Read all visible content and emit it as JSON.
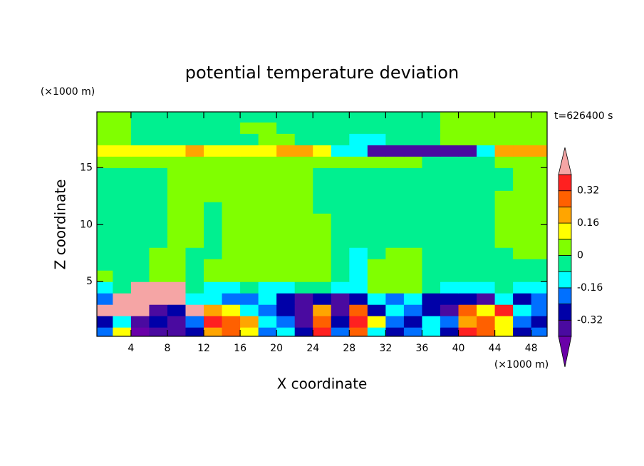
{
  "chart_data": {
    "type": "contour",
    "title": "potential temperature deviation",
    "annotation": "t=626400 s",
    "x_label": "X coordinate",
    "y_label": "Z coordinate",
    "x_unit": "(×1000 m)",
    "y_unit": "(×1000 m)",
    "xlim": [
      0.25,
      49.75
    ],
    "ylim": [
      0.2,
      19.9
    ],
    "xticks": [
      4,
      8,
      12,
      16,
      20,
      24,
      28,
      32,
      36,
      40,
      44,
      48
    ],
    "yticks": [
      5,
      10,
      15
    ],
    "x": [
      1,
      3,
      5,
      7,
      9,
      11,
      13,
      15,
      17,
      19,
      21,
      23,
      25,
      27,
      29,
      31,
      33,
      35,
      37,
      39,
      41,
      43,
      45,
      47,
      49
    ],
    "z": [
      0.5,
      1.5,
      2.5,
      3.5,
      4.5,
      5.5,
      6.5,
      7.5,
      8.5,
      9.5,
      10.5,
      11.5,
      12.5,
      13.5,
      14.5,
      15.5,
      16.5,
      17.5,
      18.5,
      19.5
    ],
    "levels": [
      -0.4,
      -0.32,
      -0.24,
      -0.16,
      -0.08,
      0,
      0.08,
      0.16,
      0.24,
      0.32,
      0.4
    ],
    "colors": [
      "#6a00a8",
      "#4a0aa0",
      "#0000a8",
      "#0070ff",
      "#00ffff",
      "#00f090",
      "#80ff00",
      "#ffff00",
      "#ffa500",
      "#ff6000",
      "#ff2020",
      "#f5a5a5"
    ],
    "colorbar_ticks": [
      0.32,
      0.16,
      0,
      -0.16,
      -0.32
    ],
    "values": [
      [
        -0.2,
        0.12,
        -0.44,
        -0.36,
        -0.36,
        -0.28,
        0.2,
        0.28,
        0.12,
        -0.2,
        -0.12,
        -0.28,
        0.36,
        -0.2,
        0.28,
        -0.12,
        -0.28,
        -0.2,
        -0.12,
        -0.28,
        0.36,
        0.28,
        0.12,
        -0.28,
        -0.2
      ],
      [
        -0.28,
        -0.12,
        -0.36,
        -0.28,
        -0.36,
        -0.2,
        0.36,
        0.28,
        0.2,
        -0.12,
        -0.2,
        -0.36,
        0.28,
        -0.28,
        0.36,
        0.12,
        -0.2,
        -0.28,
        -0.12,
        -0.2,
        0.2,
        0.28,
        0.12,
        -0.2,
        -0.28
      ],
      [
        0.44,
        0.44,
        0.44,
        -0.36,
        -0.28,
        0.44,
        0.2,
        0.12,
        -0.12,
        -0.2,
        -0.28,
        -0.36,
        0.2,
        -0.36,
        0.28,
        -0.28,
        -0.12,
        -0.2,
        -0.28,
        -0.36,
        0.28,
        0.12,
        0.36,
        -0.12,
        -0.2
      ],
      [
        -0.2,
        0.44,
        0.44,
        0.44,
        0.44,
        -0.12,
        -0.12,
        -0.2,
        -0.2,
        -0.12,
        -0.28,
        -0.36,
        -0.28,
        -0.36,
        -0.28,
        -0.12,
        -0.2,
        -0.12,
        -0.28,
        -0.28,
        -0.28,
        -0.36,
        -0.12,
        -0.28,
        -0.2
      ],
      [
        -0.12,
        -0.04,
        0.44,
        0.44,
        0.44,
        -0.04,
        -0.12,
        -0.12,
        -0.04,
        -0.12,
        -0.12,
        -0.04,
        -0.04,
        -0.12,
        -0.12,
        0.04,
        0.04,
        0.04,
        -0.04,
        -0.12,
        -0.12,
        -0.12,
        -0.04,
        -0.12,
        -0.12
      ],
      [
        0.04,
        -0.04,
        -0.04,
        0.04,
        0.04,
        -0.04,
        0.04,
        0.04,
        0.04,
        0.04,
        0.04,
        0.04,
        0.04,
        -0.04,
        -0.12,
        0.04,
        0.04,
        0.04,
        -0.04,
        -0.04,
        -0.04,
        -0.04,
        -0.04,
        -0.04,
        -0.04
      ],
      [
        -0.04,
        -0.04,
        -0.04,
        0.04,
        0.04,
        -0.04,
        0.04,
        0.04,
        0.04,
        0.04,
        0.04,
        0.04,
        0.04,
        -0.04,
        -0.12,
        0.04,
        0.04,
        0.04,
        -0.04,
        -0.04,
        -0.04,
        -0.04,
        -0.04,
        -0.04,
        -0.04
      ],
      [
        -0.04,
        -0.04,
        -0.04,
        0.04,
        0.04,
        -0.04,
        -0.04,
        0.04,
        0.04,
        0.04,
        0.04,
        0.04,
        0.04,
        -0.04,
        -0.12,
        -0.04,
        0.04,
        0.04,
        -0.04,
        -0.04,
        -0.04,
        -0.04,
        -0.04,
        0.04,
        0.04
      ],
      [
        -0.04,
        -0.04,
        -0.04,
        -0.04,
        0.04,
        0.04,
        -0.04,
        0.04,
        0.04,
        0.04,
        0.04,
        0.04,
        0.04,
        -0.04,
        -0.04,
        -0.04,
        -0.04,
        -0.04,
        -0.04,
        -0.04,
        -0.04,
        -0.04,
        0.04,
        0.04,
        0.04
      ],
      [
        -0.04,
        -0.04,
        -0.04,
        -0.04,
        0.04,
        0.04,
        -0.04,
        0.04,
        0.04,
        0.04,
        0.04,
        0.04,
        0.04,
        -0.04,
        -0.04,
        -0.04,
        -0.04,
        -0.04,
        -0.04,
        -0.04,
        -0.04,
        -0.04,
        0.04,
        0.04,
        0.04
      ],
      [
        -0.04,
        -0.04,
        -0.04,
        -0.04,
        0.04,
        0.04,
        -0.04,
        0.04,
        0.04,
        0.04,
        0.04,
        0.04,
        0.04,
        -0.04,
        -0.04,
        -0.04,
        -0.04,
        -0.04,
        -0.04,
        -0.04,
        -0.04,
        -0.04,
        0.04,
        0.04,
        0.04
      ],
      [
        -0.04,
        -0.04,
        -0.04,
        -0.04,
        0.04,
        0.04,
        -0.04,
        0.04,
        0.04,
        0.04,
        0.04,
        0.04,
        -0.04,
        -0.04,
        -0.04,
        -0.04,
        -0.04,
        -0.04,
        -0.04,
        -0.04,
        -0.04,
        -0.04,
        0.04,
        0.04,
        0.04
      ],
      [
        -0.04,
        -0.04,
        -0.04,
        -0.04,
        0.04,
        0.04,
        0.04,
        0.04,
        0.04,
        0.04,
        0.04,
        0.04,
        -0.04,
        -0.04,
        -0.04,
        -0.04,
        -0.04,
        -0.04,
        -0.04,
        -0.04,
        -0.04,
        -0.04,
        0.04,
        0.04,
        0.04
      ],
      [
        -0.04,
        -0.04,
        -0.04,
        -0.04,
        0.04,
        0.04,
        0.04,
        0.04,
        0.04,
        0.04,
        0.04,
        0.04,
        -0.04,
        -0.04,
        -0.04,
        -0.04,
        -0.04,
        -0.04,
        -0.04,
        -0.04,
        -0.04,
        -0.04,
        -0.04,
        0.04,
        0.04
      ],
      [
        -0.04,
        -0.04,
        -0.04,
        -0.04,
        0.04,
        0.04,
        0.04,
        0.04,
        0.04,
        0.04,
        0.04,
        0.04,
        -0.04,
        -0.04,
        -0.04,
        -0.04,
        -0.04,
        -0.04,
        -0.04,
        -0.04,
        -0.04,
        -0.04,
        -0.04,
        0.04,
        0.04
      ],
      [
        0.04,
        0.04,
        0.04,
        0.04,
        0.04,
        0.04,
        0.04,
        0.04,
        0.04,
        0.04,
        0.04,
        0.04,
        0.04,
        0.04,
        0.04,
        0.04,
        0.04,
        0.04,
        -0.04,
        -0.04,
        -0.04,
        -0.04,
        0.04,
        0.04,
        0.04
      ],
      [
        0.12,
        0.12,
        0.12,
        0.12,
        0.12,
        0.2,
        0.12,
        0.12,
        0.12,
        0.12,
        0.2,
        0.2,
        0.12,
        -0.12,
        -0.12,
        -0.36,
        -0.36,
        -0.36,
        -0.36,
        -0.36,
        -0.36,
        -0.12,
        0.2,
        0.2,
        0.2
      ],
      [
        0.04,
        0.04,
        -0.04,
        -0.04,
        -0.04,
        -0.04,
        -0.04,
        -0.04,
        -0.04,
        0.04,
        0.04,
        -0.04,
        -0.04,
        -0.04,
        -0.12,
        -0.12,
        -0.04,
        -0.04,
        -0.04,
        0.04,
        0.04,
        0.04,
        0.04,
        0.04,
        0.04
      ],
      [
        0.04,
        0.04,
        -0.04,
        -0.04,
        -0.04,
        -0.04,
        -0.04,
        -0.04,
        0.04,
        0.04,
        -0.04,
        -0.04,
        -0.04,
        -0.04,
        -0.04,
        -0.04,
        -0.04,
        -0.04,
        -0.04,
        0.04,
        0.04,
        0.04,
        0.04,
        0.04,
        0.04
      ],
      [
        0.04,
        0.04,
        -0.04,
        -0.04,
        -0.04,
        -0.04,
        -0.04,
        -0.04,
        -0.04,
        -0.04,
        -0.04,
        -0.04,
        -0.04,
        -0.04,
        -0.04,
        -0.04,
        -0.04,
        -0.04,
        -0.04,
        0.04,
        0.04,
        0.04,
        0.04,
        0.04,
        0.04
      ]
    ]
  }
}
